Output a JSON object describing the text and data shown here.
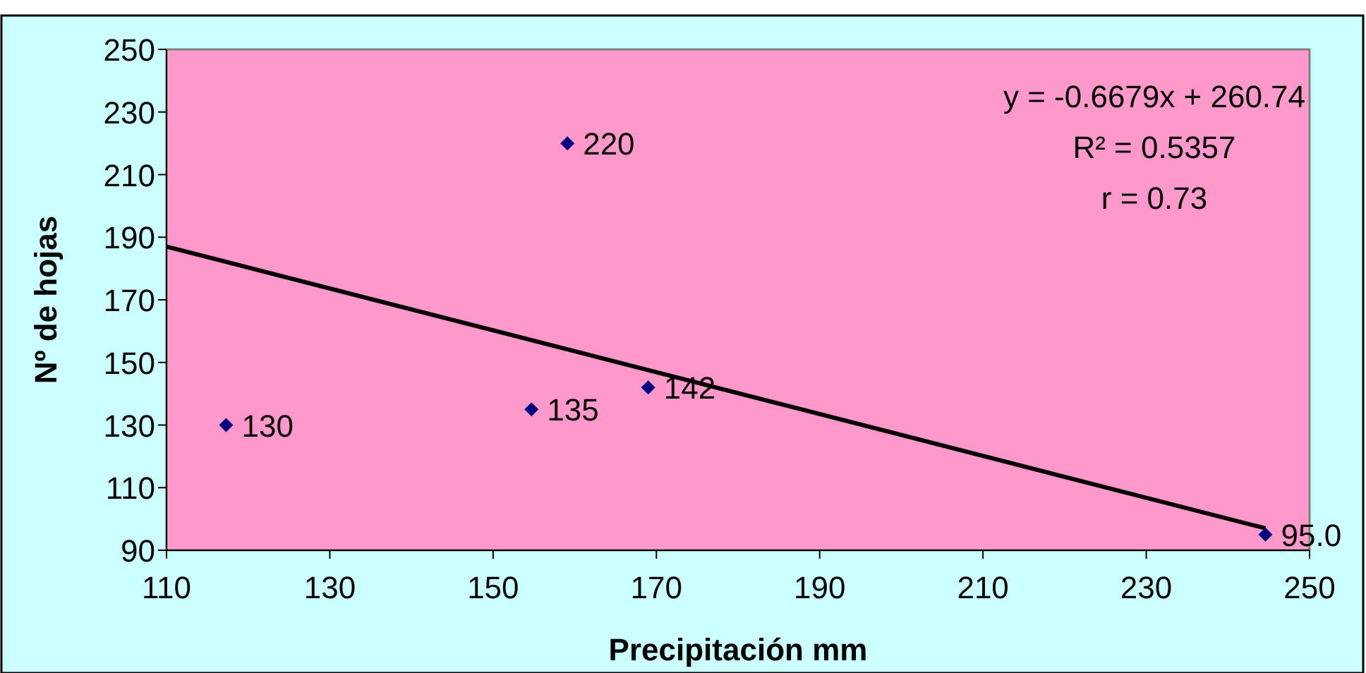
{
  "chart_data": {
    "type": "scatter",
    "xlabel": "Precipitación mm",
    "ylabel": "Nº de hojas",
    "xlim": [
      110,
      250
    ],
    "xticks": [
      110,
      130,
      150,
      170,
      190,
      210,
      230,
      250
    ],
    "ylim": [
      90,
      250
    ],
    "yticks": [
      90,
      110,
      130,
      150,
      170,
      190,
      210,
      230,
      250
    ],
    "grid": false,
    "marker": "diamond",
    "series": [
      {
        "color": "#000080",
        "x": [
          117.3,
          154.7,
          169,
          159.1,
          244.6
        ],
        "values": [
          130,
          135,
          142,
          220,
          95
        ],
        "value_labels": [
          "130",
          "135",
          "142",
          "220",
          "95.0"
        ]
      },
      {
        "type": "line",
        "color": "#000000",
        "x": [
          110,
          244.6
        ],
        "values": [
          187,
          97
        ],
        "marker": "none",
        "line_style": "solid"
      }
    ],
    "annotations": [
      "y = -0.6679x + 260.74",
      "R² = 0.5357",
      "r = 0.73"
    ]
  }
}
